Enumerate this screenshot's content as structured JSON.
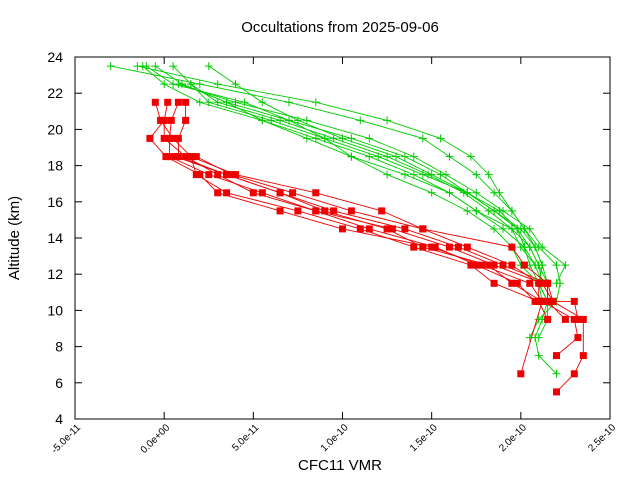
{
  "chart_data": {
    "type": "line",
    "title": "Occultations from 2025-09-06",
    "xlabel": "CFC11 VMR",
    "ylabel": "Altitude (km)",
    "xlim": [
      -5e-11,
      2.5e-10
    ],
    "ylim": [
      4,
      24
    ],
    "x_ticks": [
      "-5.0e-11",
      "0.0e+00",
      "5.0e-11",
      "1.0e-10",
      "1.5e-10",
      "2.0e-10",
      "2.5e-10"
    ],
    "x_tick_values": [
      -5e-11,
      0,
      5e-11,
      1e-10,
      1.5e-10,
      2e-10,
      2.5e-10
    ],
    "y_ticks": [
      "4",
      "6",
      "8",
      "10",
      "12",
      "14",
      "16",
      "18",
      "20",
      "22",
      "24"
    ],
    "y_tick_values": [
      4,
      6,
      8,
      10,
      12,
      14,
      16,
      18,
      20,
      22,
      24
    ],
    "grid": false,
    "legend": "none",
    "series": [
      {
        "marker": "plus",
        "color": "#00cc00",
        "values": [
          [
            [
              -3e-11,
              23.5
            ],
            [
              2e-11,
              22.5
            ],
            [
              7e-11,
              21.5
            ],
            [
              1.1e-10,
              20.5
            ],
            [
              1.45e-10,
              19.5
            ],
            [
              1.6e-10,
              18.5
            ],
            [
              1.75e-10,
              17.5
            ],
            [
              1.85e-10,
              16.5
            ],
            [
              1.95e-10,
              15.5
            ],
            [
              2.02e-10,
              14.5
            ],
            [
              2.08e-10,
              13.5
            ],
            [
              2.12e-10,
              12.5
            ],
            [
              2.15e-10,
              11.5
            ],
            [
              2.15e-10,
              10.5
            ],
            [
              2.12e-10,
              9.5
            ],
            [
              2.08e-10,
              8.5
            ],
            [
              2.1e-10,
              7.5
            ],
            [
              2.2e-10,
              6.5
            ]
          ],
          [
            [
              -1.5e-11,
              23.5
            ],
            [
              3e-11,
              22.5
            ],
            [
              8.5e-11,
              21.5
            ],
            [
              1.25e-10,
              20.5
            ],
            [
              1.55e-10,
              19.5
            ],
            [
              1.72e-10,
              18.5
            ],
            [
              1.82e-10,
              17.5
            ],
            [
              1.88e-10,
              16.5
            ],
            [
              1.95e-10,
              15.5
            ],
            [
              2.02e-10,
              14.5
            ],
            [
              2.1e-10,
              13.5
            ],
            [
              2.2e-10,
              12.5
            ],
            [
              2.22e-10,
              11.5
            ],
            [
              2.2e-10,
              10.5
            ],
            [
              2.1e-10,
              9.5
            ],
            [
              2.05e-10,
              8.5
            ]
          ],
          [
            [
              -1e-11,
              23.5
            ],
            [
              5e-12,
              22.5
            ],
            [
              4.5e-11,
              21.5
            ],
            [
              7e-11,
              20.5
            ],
            [
              9e-11,
              19.5
            ],
            [
              1.05e-10,
              18.5
            ],
            [
              1.25e-10,
              17.5
            ],
            [
              1.5e-10,
              16.5
            ],
            [
              1.7e-10,
              15.5
            ],
            [
              1.85e-10,
              14.5
            ],
            [
              1.95e-10,
              13.5
            ],
            [
              2e-10,
              12.5
            ],
            [
              2.1e-10,
              11.5
            ],
            [
              2.15e-10,
              10.5
            ],
            [
              2.15e-10,
              9.5
            ],
            [
              2.1e-10,
              8.5
            ]
          ],
          [
            [
              -5e-12,
              23.5
            ],
            [
              1e-11,
              22.5
            ],
            [
              3.5e-11,
              21.5
            ],
            [
              5.5e-11,
              20.5
            ],
            [
              8.5e-11,
              19.5
            ],
            [
              1.15e-10,
              18.5
            ],
            [
              1.4e-10,
              17.5
            ],
            [
              1.6e-10,
              16.5
            ],
            [
              1.75e-10,
              15.5
            ],
            [
              1.9e-10,
              14.5
            ],
            [
              2.02e-10,
              13.5
            ],
            [
              2.05e-10,
              12.5
            ],
            [
              2.1e-10,
              11.5
            ],
            [
              2.12e-10,
              10.5
            ]
          ],
          [
            [
              5e-12,
              23.5
            ],
            [
              1.5e-11,
              22.5
            ],
            [
              2.5e-11,
              21.5
            ],
            [
              6e-11,
              20.5
            ],
            [
              9e-11,
              19.5
            ],
            [
              1.2e-10,
              18.5
            ],
            [
              1.45e-10,
              17.5
            ],
            [
              1.7e-10,
              16.5
            ],
            [
              1.85e-10,
              15.5
            ],
            [
              2e-10,
              14.5
            ],
            [
              2.08e-10,
              13.5
            ],
            [
              2.12e-10,
              12.5
            ],
            [
              2.1e-10,
              11.5
            ],
            [
              2.15e-10,
              10.5
            ]
          ],
          [
            [
              2.5e-11,
              23.5
            ],
            [
              4e-11,
              22.5
            ],
            [
              5.5e-11,
              21.5
            ],
            [
              7.5e-11,
              20.5
            ],
            [
              1e-10,
              19.5
            ],
            [
              1.3e-10,
              18.5
            ],
            [
              1.5e-10,
              17.5
            ],
            [
              1.7e-10,
              16.5
            ],
            [
              1.88e-10,
              15.5
            ],
            [
              1.98e-10,
              14.5
            ],
            [
              2.05e-10,
              13.5
            ],
            [
              2.1e-10,
              12.5
            ],
            [
              2.15e-10,
              11.5
            ]
          ],
          [
            [
              -1.2e-11,
              23.5
            ],
            [
              0.0,
              22.5
            ],
            [
              2e-11,
              21.5
            ],
            [
              5.5e-11,
              20.5
            ],
            [
              8e-11,
              19.5
            ],
            [
              1.05e-10,
              18.5
            ],
            [
              1.35e-10,
              17.5
            ],
            [
              1.6e-10,
              16.5
            ],
            [
              1.75e-10,
              15.5
            ],
            [
              1.95e-10,
              14.5
            ],
            [
              2.05e-10,
              13.5
            ],
            [
              2.1e-10,
              12.5
            ],
            [
              2.12e-10,
              11.5
            ]
          ],
          [
            [
              1e-11,
              22.5
            ],
            [
              3.5e-11,
              21.5
            ],
            [
              7e-11,
              20.5
            ],
            [
              1.05e-10,
              19.5
            ],
            [
              1.35e-10,
              18.5
            ],
            [
              1.55e-10,
              17.5
            ],
            [
              1.7e-10,
              16.5
            ],
            [
              1.85e-10,
              15.5
            ],
            [
              1.98e-10,
              14.5
            ],
            [
              2.02e-10,
              13.5
            ],
            [
              2.08e-10,
              12.5
            ],
            [
              2.12e-10,
              11.5
            ]
          ],
          [
            [
              1.5e-11,
              22.5
            ],
            [
              3e-11,
              21.5
            ],
            [
              6.5e-11,
              20.5
            ],
            [
              9.5e-11,
              19.5
            ],
            [
              1.25e-10,
              18.5
            ],
            [
              1.48e-10,
              17.5
            ],
            [
              1.68e-10,
              16.5
            ],
            [
              1.82e-10,
              15.5
            ],
            [
              1.95e-10,
              14.5
            ],
            [
              2e-10,
              13.5
            ],
            [
              2.08e-10,
              12.5
            ]
          ],
          [
            [
              8e-12,
              22.5
            ],
            [
              4e-11,
              21.5
            ],
            [
              8e-11,
              20.5
            ],
            [
              1.15e-10,
              19.5
            ],
            [
              1.4e-10,
              18.5
            ],
            [
              1.58e-10,
              17.5
            ],
            [
              1.75e-10,
              16.5
            ],
            [
              1.9e-10,
              15.5
            ],
            [
              2.05e-10,
              14.5
            ],
            [
              2.12e-10,
              13.5
            ],
            [
              2.25e-10,
              12.5
            ],
            [
              2.2e-10,
              11.5
            ]
          ]
        ]
      },
      {
        "marker": "square",
        "color": "#ee0000",
        "values": [
          [
            [
              -5e-12,
              21.5
            ],
            [
              -2e-12,
              20.5
            ],
            [
              5e-12,
              19.5
            ],
            [
              1.5e-11,
              18.5
            ],
            [
              1.8e-11,
              17.5
            ],
            [
              3.5e-11,
              16.5
            ],
            [
              7.5e-11,
              15.5
            ],
            [
              1.1e-10,
              14.5
            ],
            [
              1.4e-10,
              13.5
            ],
            [
              1.72e-10,
              12.5
            ],
            [
              1.85e-10,
              11.5
            ],
            [
              2.1e-10,
              10.5
            ],
            [
              2.15e-10,
              9.5
            ]
          ],
          [
            [
              2e-12,
              21.5
            ],
            [
              0.0,
              20.5
            ],
            [
              -8e-12,
              19.5
            ],
            [
              1e-12,
              18.5
            ],
            [
              2e-11,
              17.5
            ],
            [
              3e-11,
              16.5
            ],
            [
              6.5e-11,
              15.5
            ],
            [
              1e-10,
              14.5
            ],
            [
              1.5e-10,
              13.5
            ],
            [
              1.78e-10,
              12.5
            ],
            [
              2.05e-10,
              11.5
            ],
            [
              2.12e-10,
              10.5
            ],
            [
              2.3e-10,
              9.5
            ],
            [
              2.32e-10,
              8.5
            ],
            [
              2.2e-10,
              7.5
            ]
          ],
          [
            [
              8e-12,
              21.5
            ],
            [
              4e-12,
              20.5
            ],
            [
              3e-12,
              19.5
            ],
            [
              3e-12,
              18.5
            ],
            [
              2.5e-11,
              17.5
            ],
            [
              5.5e-11,
              16.5
            ],
            [
              8.5e-11,
              15.5
            ],
            [
              1.28e-10,
              14.5
            ],
            [
              1.6e-10,
              13.5
            ],
            [
              1.85e-10,
              12.5
            ],
            [
              2.12e-10,
              11.5
            ],
            [
              2.18e-10,
              10.5
            ],
            [
              2.35e-10,
              9.5
            ],
            [
              2.35e-10,
              7.5
            ],
            [
              2.3e-10,
              6.5
            ],
            [
              2.2e-10,
              5.5
            ]
          ],
          [
            [
              1.2e-11,
              21.5
            ],
            [
              1.2e-11,
              20.5
            ],
            [
              8e-12,
              19.5
            ],
            [
              8e-12,
              18.5
            ],
            [
              3.5e-11,
              17.5
            ],
            [
              6.5e-11,
              16.5
            ],
            [
              9.5e-11,
              15.5
            ],
            [
              1.35e-10,
              14.5
            ],
            [
              1.65e-10,
              13.5
            ],
            [
              1.9e-10,
              12.5
            ],
            [
              2.15e-10,
              11.5
            ],
            [
              2.15e-10,
              10.5
            ],
            [
              2.25e-10,
              9.5
            ]
          ],
          [
            [
              0.0,
              20.5
            ],
            [
              0.0,
              19.5
            ],
            [
              1.2e-11,
              18.5
            ],
            [
              3e-11,
              17.5
            ],
            [
              5e-11,
              16.5
            ],
            [
              8.5e-11,
              15.5
            ],
            [
              1.15e-10,
              14.5
            ],
            [
              1.52e-10,
              13.5
            ],
            [
              1.75e-10,
              12.5
            ],
            [
              1.98e-10,
              11.5
            ],
            [
              2.08e-10,
              10.5
            ],
            [
              2.3e-10,
              10.5
            ],
            [
              2.32e-10,
              9.5
            ]
          ],
          [
            [
              6e-12,
              18.5
            ],
            [
              3.5e-11,
              17.5
            ],
            [
              6.5e-11,
              16.5
            ],
            [
              9e-11,
              15.5
            ],
            [
              1.25e-10,
              14.5
            ],
            [
              1.45e-10,
              13.5
            ],
            [
              1.82e-10,
              12.5
            ],
            [
              1.95e-10,
              11.5
            ],
            [
              2.12e-10,
              10.5
            ],
            [
              2e-10,
              6.5
            ]
          ],
          [
            [
              1.8e-11,
              18.5
            ],
            [
              3.8e-11,
              17.5
            ],
            [
              7.2e-11,
              16.5
            ],
            [
              1.05e-10,
              15.5
            ],
            [
              1.45e-10,
              14.5
            ],
            [
              1.7e-10,
              13.5
            ],
            [
              1.95e-10,
              12.5
            ],
            [
              2.1e-10,
              11.5
            ],
            [
              2.1e-10,
              10.5
            ]
          ],
          [
            [
              1.5e-11,
              18.5
            ],
            [
              4e-11,
              17.5
            ],
            [
              8.5e-11,
              16.5
            ],
            [
              1.22e-10,
              15.5
            ],
            [
              1.45e-10,
              14.5
            ],
            [
              1.95e-10,
              13.5
            ],
            [
              2.02e-10,
              12.5
            ],
            [
              2.15e-10,
              11.5
            ],
            [
              2.18e-10,
              10.5
            ]
          ]
        ]
      }
    ]
  }
}
